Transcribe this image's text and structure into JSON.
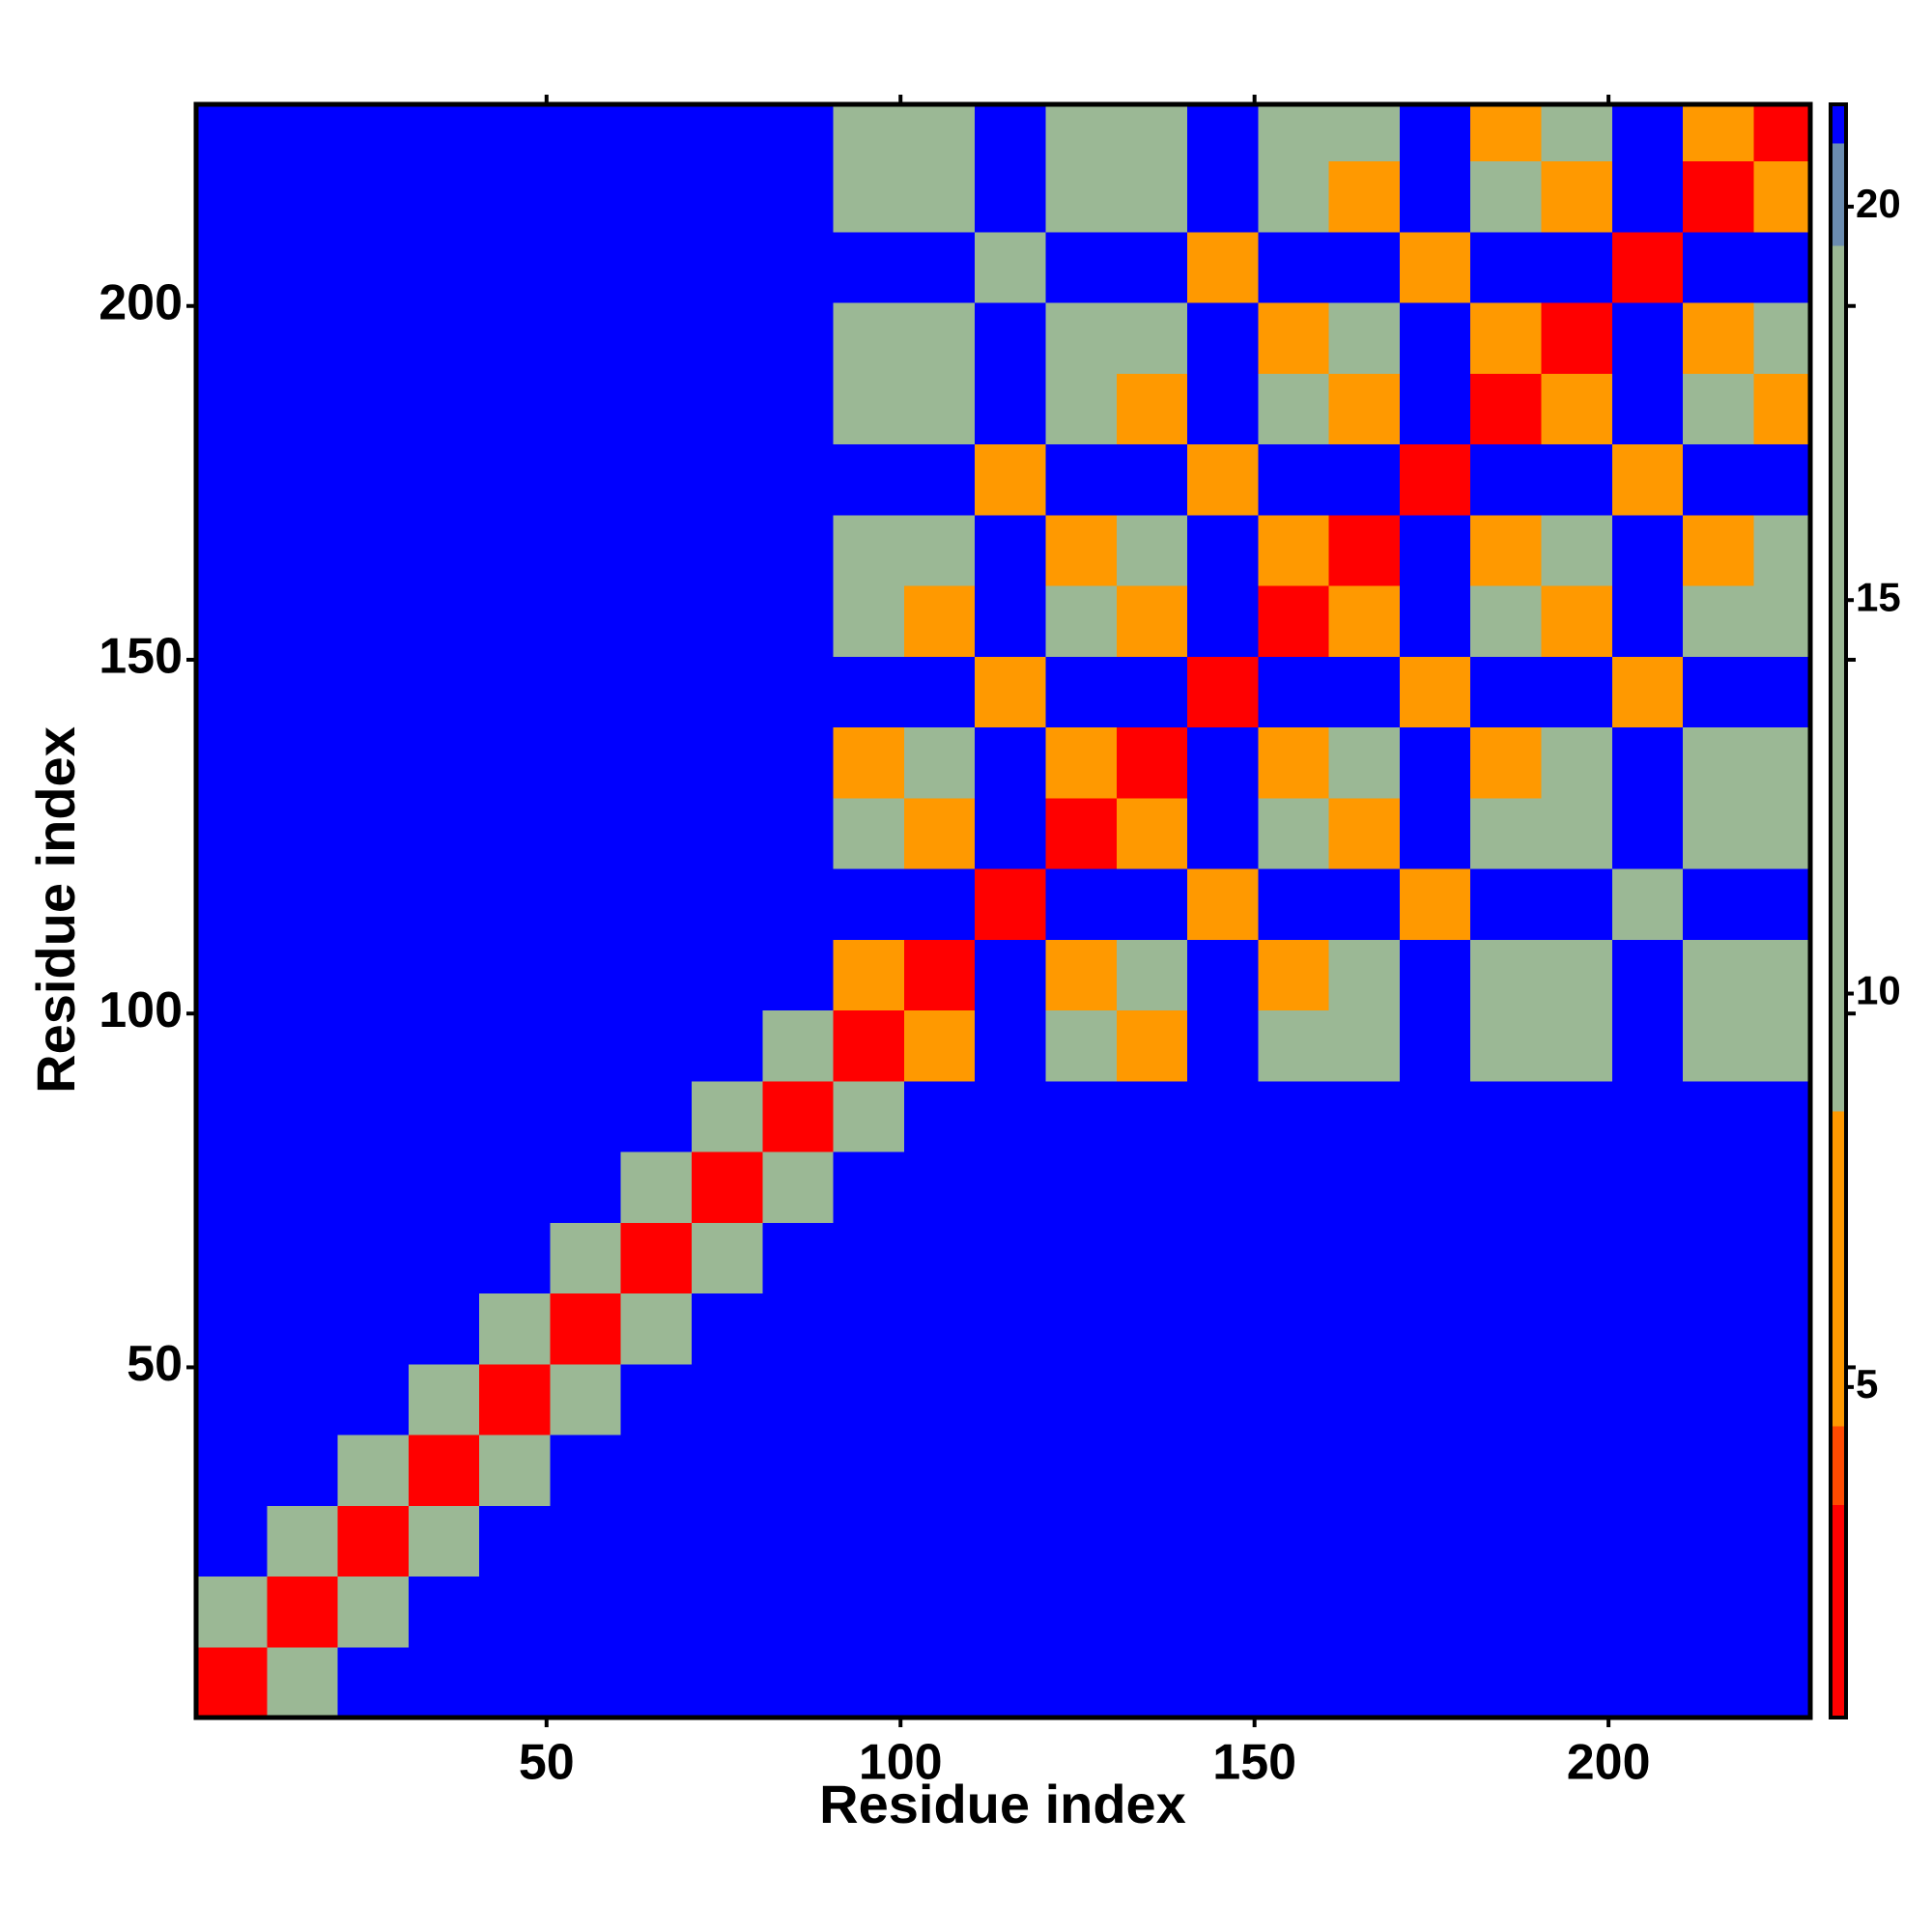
{
  "chart_data": {
    "type": "heatmap",
    "xlabel": "Residue index",
    "ylabel": "Residue index",
    "xbins": [
      0.5,
      10.5,
      20.5,
      30.5,
      40.5,
      50.5,
      60.5,
      70.5,
      80.5,
      90.5,
      100.5,
      110.5,
      120.5,
      130.5,
      140.5,
      150.5,
      160.5,
      170.5,
      180.5,
      190.5,
      200.5,
      210.5,
      220.5,
      228.5
    ],
    "ybins": [
      0.5,
      10.5,
      20.5,
      30.5,
      40.5,
      50.5,
      60.5,
      70.5,
      80.5,
      90.5,
      100.5,
      110.5,
      120.5,
      130.5,
      140.5,
      150.5,
      160.5,
      170.5,
      180.5,
      190.5,
      200.5,
      210.5,
      220.5,
      228.5
    ],
    "xlim": [
      0.5,
      228.5
    ],
    "ylim": [
      0.5,
      228.5
    ],
    "xticks": [
      50,
      100,
      150,
      200
    ],
    "yticks": [
      50,
      100,
      150,
      200
    ],
    "z": [
      [
        3,
        17,
        21,
        21,
        21,
        21,
        21,
        21,
        21,
        21,
        21,
        21,
        21,
        21,
        21,
        21,
        21,
        21,
        21,
        21,
        21,
        21,
        21
      ],
      [
        17,
        3,
        17,
        21,
        21,
        21,
        21,
        21,
        21,
        21,
        21,
        21,
        21,
        21,
        21,
        21,
        21,
        21,
        21,
        21,
        21,
        21,
        21
      ],
      [
        21,
        17,
        3,
        17,
        21,
        21,
        21,
        21,
        21,
        21,
        21,
        21,
        21,
        21,
        21,
        21,
        21,
        21,
        21,
        21,
        21,
        21,
        21
      ],
      [
        21,
        21,
        17,
        3,
        17,
        21,
        21,
        21,
        21,
        21,
        21,
        21,
        21,
        21,
        21,
        21,
        21,
        21,
        21,
        21,
        21,
        21,
        21
      ],
      [
        21,
        21,
        21,
        17,
        3,
        17,
        21,
        21,
        21,
        21,
        21,
        21,
        21,
        21,
        21,
        21,
        21,
        21,
        21,
        21,
        21,
        21,
        21
      ],
      [
        21,
        21,
        21,
        21,
        17,
        3,
        17,
        21,
        21,
        21,
        21,
        21,
        21,
        21,
        21,
        21,
        21,
        21,
        21,
        21,
        21,
        21,
        21
      ],
      [
        21,
        21,
        21,
        21,
        21,
        17,
        3,
        17,
        21,
        21,
        21,
        21,
        21,
        21,
        21,
        21,
        21,
        21,
        21,
        21,
        21,
        21,
        21
      ],
      [
        21,
        21,
        21,
        21,
        21,
        21,
        17,
        3,
        17,
        21,
        21,
        21,
        21,
        21,
        21,
        21,
        21,
        21,
        21,
        21,
        21,
        21,
        21
      ],
      [
        21,
        21,
        21,
        21,
        21,
        21,
        21,
        17,
        3,
        17,
        21,
        21,
        21,
        21,
        21,
        21,
        21,
        21,
        21,
        21,
        21,
        21,
        21
      ],
      [
        21,
        21,
        21,
        21,
        21,
        21,
        21,
        21,
        17,
        3,
        7,
        21,
        13,
        7,
        21,
        13,
        12,
        21,
        13,
        12,
        21,
        13,
        12
      ],
      [
        21,
        21,
        21,
        21,
        21,
        21,
        21,
        21,
        21,
        7,
        3,
        21,
        7,
        13,
        21,
        7,
        13,
        21,
        12,
        13,
        21,
        12,
        13
      ],
      [
        21,
        21,
        21,
        21,
        21,
        21,
        21,
        21,
        21,
        21,
        21,
        3,
        21,
        21,
        7,
        21,
        21,
        7,
        21,
        21,
        12,
        21,
        21
      ],
      [
        21,
        21,
        21,
        21,
        21,
        21,
        21,
        21,
        21,
        13,
        7,
        21,
        3,
        7,
        21,
        13,
        7,
        21,
        13,
        12,
        21,
        13,
        12
      ],
      [
        21,
        21,
        21,
        21,
        21,
        21,
        21,
        21,
        21,
        7,
        13,
        21,
        7,
        3,
        21,
        7,
        13,
        21,
        7,
        13,
        21,
        12,
        13
      ],
      [
        21,
        21,
        21,
        21,
        21,
        21,
        21,
        21,
        21,
        21,
        21,
        7,
        21,
        21,
        3,
        21,
        21,
        7,
        21,
        21,
        7,
        21,
        21
      ],
      [
        21,
        21,
        21,
        21,
        21,
        21,
        21,
        21,
        21,
        13,
        7,
        21,
        13,
        7,
        21,
        3,
        7,
        21,
        13,
        7,
        21,
        13,
        12
      ],
      [
        21,
        21,
        21,
        21,
        21,
        21,
        21,
        21,
        21,
        12,
        13,
        21,
        7,
        13,
        21,
        7,
        3,
        21,
        7,
        13,
        21,
        7,
        13
      ],
      [
        21,
        21,
        21,
        21,
        21,
        21,
        21,
        21,
        21,
        21,
        21,
        7,
        21,
        21,
        7,
        21,
        21,
        3,
        21,
        21,
        7,
        21,
        21
      ],
      [
        21,
        21,
        21,
        21,
        21,
        21,
        21,
        21,
        21,
        13,
        12,
        21,
        13,
        7,
        21,
        13,
        7,
        21,
        3,
        7,
        21,
        13,
        7
      ],
      [
        21,
        21,
        21,
        21,
        21,
        21,
        21,
        21,
        21,
        12,
        13,
        21,
        12,
        13,
        21,
        7,
        13,
        21,
        7,
        3,
        21,
        7,
        13
      ],
      [
        21,
        21,
        21,
        21,
        21,
        21,
        21,
        21,
        21,
        21,
        21,
        12,
        21,
        21,
        7,
        21,
        21,
        7,
        21,
        21,
        3,
        21,
        21
      ],
      [
        21,
        21,
        21,
        21,
        21,
        21,
        21,
        21,
        21,
        13,
        12,
        21,
        13,
        12,
        21,
        13,
        7,
        21,
        13,
        7,
        21,
        3,
        7
      ],
      [
        21,
        21,
        21,
        21,
        21,
        21,
        21,
        21,
        21,
        12,
        13,
        21,
        12,
        13,
        21,
        12,
        13,
        21,
        7,
        13,
        21,
        7,
        3
      ]
    ],
    "colorbar": {
      "lim": [
        0.8,
        21.3
      ],
      "ticks": [
        5,
        10,
        15,
        20
      ],
      "bands": [
        {
          "from": 0.8,
          "to": 3.5,
          "color": "#ff0000"
        },
        {
          "from": 3.5,
          "to": 4.5,
          "color": "#ff4a00"
        },
        {
          "from": 4.5,
          "to": 8.5,
          "color": "#ff9900"
        },
        {
          "from": 8.5,
          "to": 19.5,
          "color": "#9bb895"
        },
        {
          "from": 19.5,
          "to": 20.8,
          "color": "#6b8cb0"
        },
        {
          "from": 20.8,
          "to": 21.3,
          "color": "#0000ff"
        }
      ]
    }
  }
}
